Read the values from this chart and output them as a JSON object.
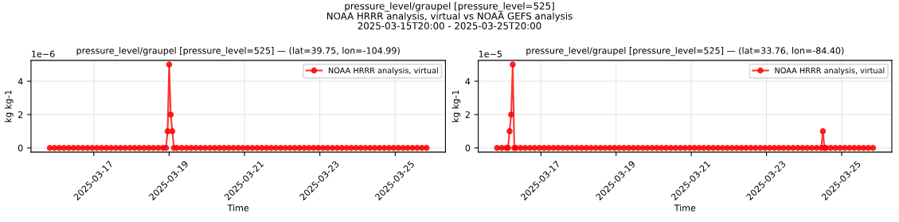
{
  "chart_data": [
    {
      "type": "line",
      "title": "pressure_level/graupel [pressure_level=525] — (lat=39.75, lon=-104.99)",
      "xlabel": "Time",
      "ylabel": "kg kg-1",
      "annotations": [
        "pressure_level/graupel [pressure_level=525]\nNOAA HRRR analysis, virtual vs NOAA GEFS analysis\n2025-03-15T20:00 - 2025-03-25T20:00",
        "1e−6"
      ],
      "xlim": [
        "2025-03-15T08:00",
        "2025-03-26T08:00"
      ],
      "xticks": [
        {
          "value": "2025-03-17",
          "label": "2025-03-17"
        },
        {
          "value": "2025-03-19",
          "label": "2025-03-19"
        },
        {
          "value": "2025-03-21",
          "label": "2025-03-21"
        },
        {
          "value": "2025-03-23",
          "label": "2025-03-23"
        },
        {
          "value": "2025-03-25",
          "label": "2025-03-25"
        }
      ],
      "ylim": [
        -0.25,
        5.25
      ],
      "yticks": [
        0,
        2,
        4
      ],
      "grid": true,
      "legend": "top right",
      "marker": "circle",
      "line_style": "solid",
      "series": [
        {
          "name": "NOAA HRRR analysis, virtual",
          "color": "#ff0000",
          "x": [
            "2025-03-15T20:00",
            "2025-03-15T23:00",
            "2025-03-16T02:00",
            "2025-03-16T05:00",
            "2025-03-16T08:00",
            "2025-03-16T11:00",
            "2025-03-16T14:00",
            "2025-03-16T17:00",
            "2025-03-16T20:00",
            "2025-03-16T23:00",
            "2025-03-17T02:00",
            "2025-03-17T05:00",
            "2025-03-17T08:00",
            "2025-03-17T11:00",
            "2025-03-17T14:00",
            "2025-03-17T17:00",
            "2025-03-17T20:00",
            "2025-03-17T23:00",
            "2025-03-18T02:00",
            "2025-03-18T05:00",
            "2025-03-18T08:00",
            "2025-03-18T11:00",
            "2025-03-18T14:00",
            "2025-03-18T17:00",
            "2025-03-18T20:00",
            "2025-03-18T22:00",
            "2025-03-18T23:00",
            "2025-03-19T00:00",
            "2025-03-19T01:00",
            "2025-03-19T02:00",
            "2025-03-19T03:00",
            "2025-03-19T05:00",
            "2025-03-19T08:00",
            "2025-03-19T11:00",
            "2025-03-19T14:00",
            "2025-03-19T17:00",
            "2025-03-19T20:00",
            "2025-03-19T23:00",
            "2025-03-20T02:00",
            "2025-03-20T05:00",
            "2025-03-20T08:00",
            "2025-03-20T11:00",
            "2025-03-20T14:00",
            "2025-03-20T17:00",
            "2025-03-20T20:00",
            "2025-03-20T23:00",
            "2025-03-21T02:00",
            "2025-03-21T05:00",
            "2025-03-21T08:00",
            "2025-03-21T11:00",
            "2025-03-21T14:00",
            "2025-03-21T17:00",
            "2025-03-21T20:00",
            "2025-03-21T23:00",
            "2025-03-22T02:00",
            "2025-03-22T05:00",
            "2025-03-22T08:00",
            "2025-03-22T11:00",
            "2025-03-22T14:00",
            "2025-03-22T17:00",
            "2025-03-22T20:00",
            "2025-03-22T23:00",
            "2025-03-23T02:00",
            "2025-03-23T05:00",
            "2025-03-23T08:00",
            "2025-03-23T11:00",
            "2025-03-23T14:00",
            "2025-03-23T17:00",
            "2025-03-23T20:00",
            "2025-03-23T23:00",
            "2025-03-24T02:00",
            "2025-03-24T05:00",
            "2025-03-24T08:00",
            "2025-03-24T11:00",
            "2025-03-24T14:00",
            "2025-03-24T17:00",
            "2025-03-24T20:00",
            "2025-03-24T23:00",
            "2025-03-25T02:00",
            "2025-03-25T05:00",
            "2025-03-25T08:00",
            "2025-03-25T11:00",
            "2025-03-25T14:00",
            "2025-03-25T17:00",
            "2025-03-25T20:00"
          ],
          "values": [
            0,
            0,
            0,
            0,
            0,
            0,
            0,
            0,
            0,
            0,
            0,
            0,
            0,
            0,
            0,
            0,
            0,
            0,
            0,
            0,
            0,
            0,
            0,
            0,
            0,
            0,
            1,
            5,
            2,
            1,
            0,
            0,
            0,
            0,
            0,
            0,
            0,
            0,
            0,
            0,
            0,
            0,
            0,
            0,
            0,
            0,
            0,
            0,
            0,
            0,
            0,
            0,
            0,
            0,
            0,
            0,
            0,
            0,
            0,
            0,
            0,
            0,
            0,
            0,
            0,
            0,
            0,
            0,
            0,
            0,
            0,
            0,
            0,
            0,
            0,
            0,
            0,
            0,
            0,
            0,
            0,
            0,
            0,
            0,
            0
          ]
        }
      ]
    },
    {
      "type": "line",
      "title": "pressure_level/graupel [pressure_level=525] — (lat=33.76, lon=-84.40)",
      "xlabel": "Time",
      "ylabel": "kg kg-1",
      "annotations": [
        "1e−5"
      ],
      "xlim": [
        "2025-03-15T08:00",
        "2025-03-26T08:00"
      ],
      "xticks": [
        {
          "value": "2025-03-17",
          "label": "2025-03-17"
        },
        {
          "value": "2025-03-19",
          "label": "2025-03-19"
        },
        {
          "value": "2025-03-21",
          "label": "2025-03-21"
        },
        {
          "value": "2025-03-23",
          "label": "2025-03-23"
        },
        {
          "value": "2025-03-25",
          "label": "2025-03-25"
        }
      ],
      "ylim": [
        -0.25,
        5.25
      ],
      "yticks": [
        0,
        2,
        4
      ],
      "grid": true,
      "legend": "top right",
      "marker": "circle",
      "line_style": "solid",
      "series": [
        {
          "name": "NOAA HRRR analysis, virtual",
          "color": "#ff0000",
          "x": [
            "2025-03-15T20:00",
            "2025-03-15T23:00",
            "2025-03-16T02:00",
            "2025-03-16T03:00",
            "2025-03-16T04:00",
            "2025-03-16T05:00",
            "2025-03-16T06:00",
            "2025-03-16T07:00",
            "2025-03-16T08:00",
            "2025-03-16T11:00",
            "2025-03-16T14:00",
            "2025-03-16T17:00",
            "2025-03-16T20:00",
            "2025-03-16T23:00",
            "2025-03-17T02:00",
            "2025-03-17T05:00",
            "2025-03-17T08:00",
            "2025-03-17T11:00",
            "2025-03-17T14:00",
            "2025-03-17T17:00",
            "2025-03-17T20:00",
            "2025-03-17T23:00",
            "2025-03-18T02:00",
            "2025-03-18T05:00",
            "2025-03-18T08:00",
            "2025-03-18T11:00",
            "2025-03-18T14:00",
            "2025-03-18T17:00",
            "2025-03-18T20:00",
            "2025-03-18T23:00",
            "2025-03-19T02:00",
            "2025-03-19T05:00",
            "2025-03-19T08:00",
            "2025-03-19T11:00",
            "2025-03-19T14:00",
            "2025-03-19T17:00",
            "2025-03-19T20:00",
            "2025-03-19T23:00",
            "2025-03-20T02:00",
            "2025-03-20T05:00",
            "2025-03-20T08:00",
            "2025-03-20T11:00",
            "2025-03-20T14:00",
            "2025-03-20T17:00",
            "2025-03-20T20:00",
            "2025-03-20T23:00",
            "2025-03-21T02:00",
            "2025-03-21T05:00",
            "2025-03-21T08:00",
            "2025-03-21T11:00",
            "2025-03-21T14:00",
            "2025-03-21T17:00",
            "2025-03-21T20:00",
            "2025-03-21T23:00",
            "2025-03-22T02:00",
            "2025-03-22T05:00",
            "2025-03-22T08:00",
            "2025-03-22T11:00",
            "2025-03-22T14:00",
            "2025-03-22T17:00",
            "2025-03-22T20:00",
            "2025-03-22T23:00",
            "2025-03-23T02:00",
            "2025-03-23T05:00",
            "2025-03-23T08:00",
            "2025-03-23T11:00",
            "2025-03-23T14:00",
            "2025-03-23T17:00",
            "2025-03-23T20:00",
            "2025-03-23T23:00",
            "2025-03-24T02:00",
            "2025-03-24T05:00",
            "2025-03-24T08:00",
            "2025-03-24T11:00",
            "2025-03-24T12:00",
            "2025-03-24T13:00",
            "2025-03-24T14:00",
            "2025-03-24T17:00",
            "2025-03-24T20:00",
            "2025-03-24T23:00",
            "2025-03-25T02:00",
            "2025-03-25T05:00",
            "2025-03-25T08:00",
            "2025-03-25T11:00",
            "2025-03-25T14:00",
            "2025-03-25T17:00",
            "2025-03-25T20:00"
          ],
          "values": [
            0,
            0,
            0,
            0,
            1,
            2,
            5,
            0,
            0,
            0,
            0,
            0,
            0,
            0,
            0,
            0,
            0,
            0,
            0,
            0,
            0,
            0,
            0,
            0,
            0,
            0,
            0,
            0,
            0,
            0,
            0,
            0,
            0,
            0,
            0,
            0,
            0,
            0,
            0,
            0,
            0,
            0,
            0,
            0,
            0,
            0,
            0,
            0,
            0,
            0,
            0,
            0,
            0,
            0,
            0,
            0,
            0,
            0,
            0,
            0,
            0,
            0,
            0,
            0,
            0,
            0,
            0,
            0,
            0,
            0,
            0,
            0,
            0,
            0,
            1,
            0,
            0,
            0,
            0,
            0,
            0,
            0,
            0,
            0,
            0,
            0,
            0
          ]
        }
      ]
    }
  ]
}
